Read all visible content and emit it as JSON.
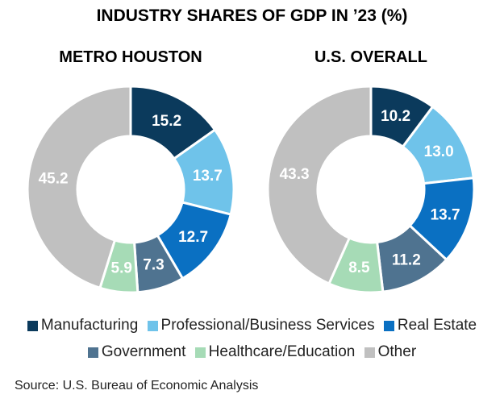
{
  "chart_data": [
    {
      "type": "donut",
      "title": "INDUSTRY SHARES OF GDP IN ’23 (%)",
      "subtitle": "METRO HOUSTON",
      "categories": [
        "Manufacturing",
        "Professional/Business Services",
        "Real Estate",
        "Government",
        "Healthcare/Education",
        "Other"
      ],
      "values": [
        15.2,
        13.7,
        12.7,
        7.3,
        5.9,
        45.2
      ]
    },
    {
      "type": "donut",
      "subtitle": "U.S. OVERALL",
      "categories": [
        "Manufacturing",
        "Professional/Business Services",
        "Real Estate",
        "Government",
        "Healthcare/Education",
        "Other"
      ],
      "values": [
        10.2,
        13.0,
        13.7,
        11.2,
        8.5,
        43.3
      ]
    }
  ],
  "title": "INDUSTRY SHARES OF GDP IN ’23 (%)",
  "legend": [
    {
      "label": "Manufacturing",
      "color": "#0b3a5c"
    },
    {
      "label": "Professional/Business Services",
      "color": "#6fc3ea"
    },
    {
      "label": "Real Estate",
      "color": "#0a70c2"
    },
    {
      "label": "Government",
      "color": "#4f7390"
    },
    {
      "label": "Healthcare/Education",
      "color": "#a6dbb6"
    },
    {
      "label": "Other",
      "color": "#c0c0c0"
    }
  ],
  "source": "Source: U.S. Bureau of Economic Analysis"
}
